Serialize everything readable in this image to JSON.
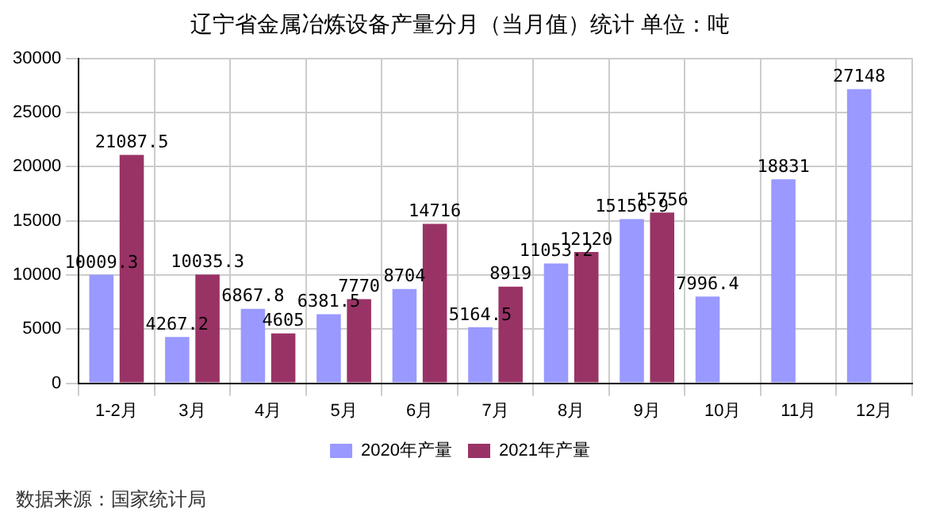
{
  "chart_data": {
    "type": "bar",
    "title": "辽宁省金属冶炼设备产量分月（当月值）统计 单位：吨",
    "categories": [
      "1-2月",
      "3月",
      "4月",
      "5月",
      "6月",
      "7月",
      "8月",
      "9月",
      "10月",
      "11月",
      "12月"
    ],
    "series": [
      {
        "name": "2020年产量",
        "color": "#9999ff",
        "values": [
          10009.3,
          4267.2,
          6867.8,
          6381.5,
          8704,
          5164.5,
          11053.2,
          15156.9,
          7996.4,
          18831,
          27148
        ]
      },
      {
        "name": "2021年产量",
        "color": "#993366",
        "values": [
          21087.5,
          10035.3,
          4605,
          7770,
          14716,
          8919,
          12120,
          15756,
          null,
          null,
          null
        ]
      }
    ],
    "ylim": [
      0,
      30000
    ],
    "yticks": [
      0,
      5000,
      10000,
      15000,
      20000,
      25000,
      30000
    ],
    "grid": true,
    "legend": "bottom",
    "data_labels": true,
    "annotations": [
      "数据来源：国家统计局"
    ]
  }
}
